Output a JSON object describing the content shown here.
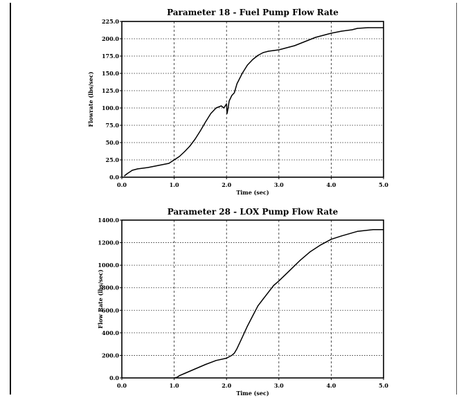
{
  "chart_data": [
    {
      "type": "line",
      "title": "Parameter 18 - Fuel Pump Flow Rate",
      "xlabel": "Time (sec)",
      "ylabel": "Flowrate (lbs/sec)",
      "xlim": [
        0,
        5
      ],
      "ylim": [
        0,
        225
      ],
      "xticks": [
        "0.0",
        "1.0",
        "2.0",
        "3.0",
        "4.0",
        "5.0"
      ],
      "yticks": [
        "0.0",
        "25.0",
        "50.0",
        "75.0",
        "100.0",
        "125.0",
        "150.0",
        "175.0",
        "200.0",
        "225.0"
      ],
      "grid": true,
      "series": [
        {
          "x": [
            0.05,
            0.1,
            0.2,
            0.3,
            0.5,
            0.7,
            0.9,
            1.0,
            1.1,
            1.2,
            1.3,
            1.4,
            1.5,
            1.6,
            1.7,
            1.8,
            1.9,
            1.95,
            2.0,
            2.01,
            2.03,
            2.05,
            2.1,
            2.15,
            2.2,
            2.3,
            2.4,
            2.5,
            2.6,
            2.7,
            2.8,
            2.9,
            3.0,
            3.1,
            3.2,
            3.3,
            3.5,
            3.7,
            3.9,
            4.0,
            4.2,
            4.4,
            4.5,
            4.7,
            5.0
          ],
          "y": [
            2,
            5,
            10,
            12,
            14,
            17,
            20,
            25,
            30,
            37,
            45,
            55,
            67,
            80,
            92,
            100,
            103,
            100,
            106,
            92,
            100,
            110,
            118,
            122,
            135,
            150,
            162,
            170,
            176,
            180,
            182,
            183,
            184,
            186,
            188,
            190,
            196,
            202,
            206,
            208,
            211,
            213,
            215,
            216,
            216
          ]
        }
      ]
    },
    {
      "type": "line",
      "title": "Parameter 28 - LOX Pump Flow Rate",
      "xlabel": "Time (sec)",
      "ylabel": "Flow Rate (lbs/sec)",
      "xlim": [
        0,
        5
      ],
      "ylim": [
        0,
        1400
      ],
      "xticks": [
        "0.0",
        "1.0",
        "2.0",
        "3.0",
        "4.0",
        "5.0"
      ],
      "yticks": [
        "0.0",
        "200.0",
        "400.0",
        "600.0",
        "800.0",
        "1000.0",
        "1200.0",
        "1400.0"
      ],
      "grid": true,
      "series": [
        {
          "x": [
            1.0,
            1.05,
            1.1,
            1.2,
            1.4,
            1.6,
            1.8,
            2.0,
            2.1,
            2.15,
            2.2,
            2.3,
            2.4,
            2.5,
            2.6,
            2.7,
            2.8,
            2.9,
            3.0,
            3.2,
            3.4,
            3.6,
            3.8,
            4.0,
            4.2,
            4.5,
            4.8,
            5.0
          ],
          "y": [
            0,
            5,
            20,
            40,
            80,
            120,
            155,
            175,
            200,
            220,
            260,
            360,
            460,
            550,
            640,
            700,
            760,
            820,
            860,
            950,
            1040,
            1120,
            1180,
            1230,
            1260,
            1300,
            1315,
            1315
          ]
        }
      ]
    }
  ]
}
